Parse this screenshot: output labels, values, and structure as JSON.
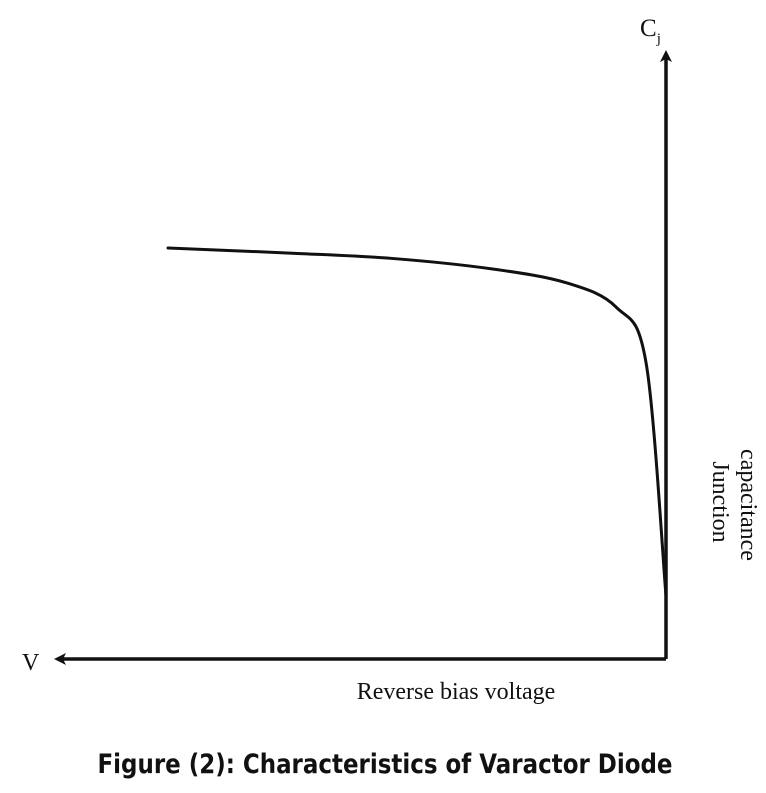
{
  "chart_data": {
    "type": "line",
    "title": "Figure (2): Characteristics of Varactor Diode",
    "xlabel": "Reverse bias voltage",
    "ylabel": "Junction capacitance",
    "x_axis_symbol": "V",
    "y_axis_symbol_main": "C",
    "y_axis_symbol_sub": "j",
    "x_direction": "reversed",
    "grid": false,
    "legend": "none",
    "series": [
      {
        "values": [
          0.0,
          0.67,
          0.83,
          0.9,
          0.94,
          0.97,
          0.985,
          1.0
        ],
        "x": [
          0.0,
          0.04,
          0.1,
          0.2,
          0.35,
          0.55,
          0.75,
          1.0
        ]
      }
    ]
  }
}
